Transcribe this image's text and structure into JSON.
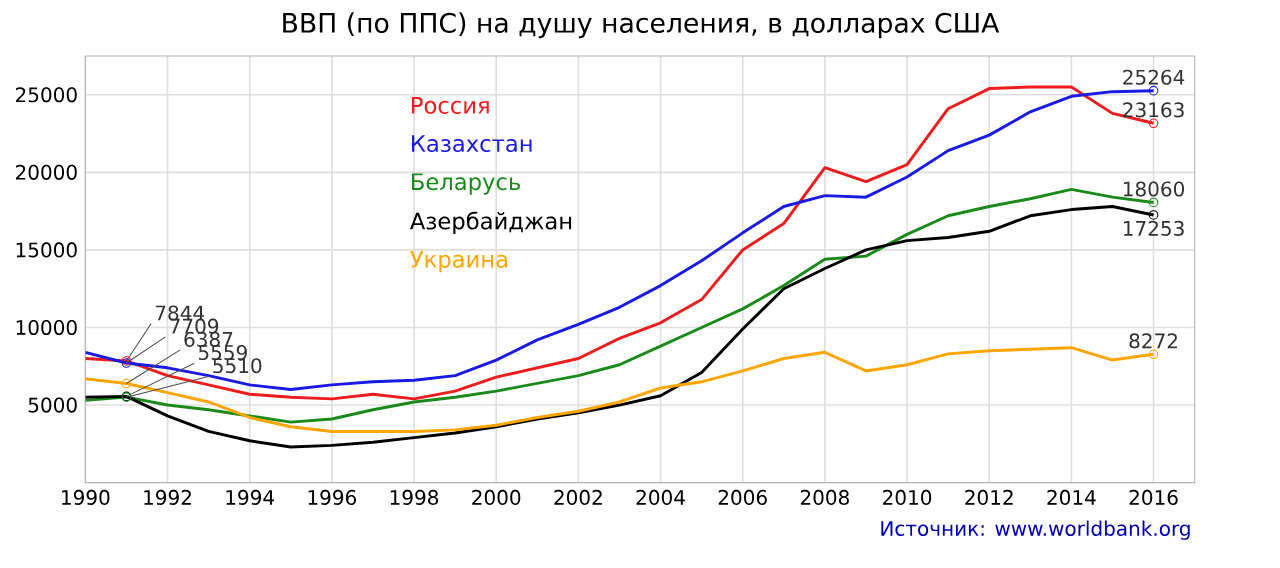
{
  "chart_data": {
    "type": "line",
    "title": "ВВП (по ППС) на душу населения, в долларах США",
    "x": [
      1990,
      1991,
      1992,
      1993,
      1994,
      1995,
      1996,
      1997,
      1998,
      1999,
      2000,
      2001,
      2002,
      2003,
      2004,
      2005,
      2006,
      2007,
      2008,
      2009,
      2010,
      2011,
      2012,
      2013,
      2014,
      2015,
      2016
    ],
    "xlim": [
      1990,
      2017
    ],
    "xticks": [
      1990,
      1992,
      1994,
      1996,
      1998,
      2000,
      2002,
      2004,
      2006,
      2008,
      2010,
      2012,
      2014,
      2016
    ],
    "ylim": [
      0,
      27500
    ],
    "yticks": [
      5000,
      10000,
      15000,
      20000,
      25000
    ],
    "grid": true,
    "legend": "top left",
    "series": [
      {
        "name": "Россия",
        "color": "#ee1c1c",
        "values": [
          8000,
          7844,
          6900,
          6300,
          5700,
          5500,
          5400,
          5700,
          5400,
          5900,
          6800,
          7400,
          8000,
          9300,
          10300,
          11800,
          15000,
          16700,
          20300,
          19400,
          20500,
          24100,
          25400,
          25500,
          25500,
          23800,
          23163
        ],
        "value_labels": [
          null,
          "7844",
          null,
          null,
          null,
          null,
          null,
          null,
          null,
          null,
          null,
          null,
          null,
          null,
          null,
          null,
          null,
          null,
          null,
          null,
          null,
          null,
          null,
          null,
          null,
          null,
          "23163"
        ]
      },
      {
        "name": "Казахстан",
        "color": "#1a1ae6",
        "values": [
          8400,
          7709,
          7400,
          6900,
          6300,
          6000,
          6300,
          6500,
          6600,
          6900,
          7900,
          9200,
          10200,
          11300,
          12700,
          14300,
          16100,
          17800,
          18500,
          18400,
          19700,
          21400,
          22400,
          23900,
          24900,
          25200,
          25264
        ],
        "value_labels": [
          null,
          "7709",
          null,
          null,
          null,
          null,
          null,
          null,
          null,
          null,
          null,
          null,
          null,
          null,
          null,
          null,
          null,
          null,
          null,
          null,
          null,
          null,
          null,
          null,
          null,
          null,
          "25264"
        ]
      },
      {
        "name": "Беларусь",
        "color": "#1a8a1a",
        "values": [
          5300,
          5510,
          5000,
          4700,
          4300,
          3900,
          4100,
          4700,
          5200,
          5500,
          5900,
          6400,
          6900,
          7600,
          8800,
          10000,
          11200,
          12700,
          14400,
          14600,
          16000,
          17200,
          17800,
          18300,
          18900,
          18400,
          18060
        ],
        "value_labels": [
          null,
          "5510",
          null,
          null,
          null,
          null,
          null,
          null,
          null,
          null,
          null,
          null,
          null,
          null,
          null,
          null,
          null,
          null,
          null,
          null,
          null,
          null,
          null,
          null,
          null,
          null,
          "18060"
        ]
      },
      {
        "name": "Азербайджан",
        "color": "#000000",
        "values": [
          5500,
          5559,
          4300,
          3300,
          2700,
          2300,
          2400,
          2600,
          2900,
          3200,
          3600,
          4100,
          4500,
          5000,
          5600,
          7100,
          9900,
          12500,
          13800,
          15000,
          15600,
          15800,
          16200,
          17200,
          17600,
          17800,
          17253
        ],
        "value_labels": [
          null,
          "5559",
          null,
          null,
          null,
          null,
          null,
          null,
          null,
          null,
          null,
          null,
          null,
          null,
          null,
          null,
          null,
          null,
          null,
          null,
          null,
          null,
          null,
          null,
          null,
          null,
          "17253"
        ]
      },
      {
        "name": "Украина",
        "color": "#ffa500",
        "values": [
          6700,
          6387,
          5800,
          5200,
          4200,
          3600,
          3300,
          3300,
          3300,
          3400,
          3700,
          4200,
          4600,
          5200,
          6100,
          6500,
          7200,
          8000,
          8400,
          7200,
          7600,
          8300,
          8500,
          8600,
          8700,
          7900,
          8272
        ],
        "value_labels": [
          null,
          "6387",
          null,
          null,
          null,
          null,
          null,
          null,
          null,
          null,
          null,
          null,
          null,
          null,
          null,
          null,
          null,
          null,
          null,
          null,
          null,
          null,
          null,
          null,
          null,
          null,
          "8272"
        ]
      }
    ],
    "annotations": [
      "Источник: www.worldbank.org"
    ]
  }
}
